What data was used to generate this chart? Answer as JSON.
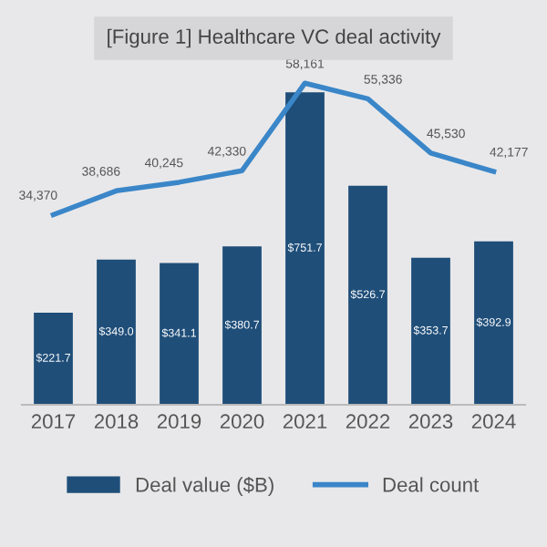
{
  "chart_data": {
    "type": "bar",
    "title": "[Figure 1] Healthcare VC deal activity",
    "categories": [
      "2017",
      "2018",
      "2019",
      "2020",
      "2021",
      "2022",
      "2023",
      "2024"
    ],
    "series": [
      {
        "name": "Deal value ($B)",
        "color": "#1f4e79",
        "values": [
          221.7,
          349.0,
          341.1,
          380.7,
          751.7,
          526.7,
          353.7,
          392.9
        ],
        "value_labels": [
          "$221.7",
          "$349.0",
          "$341.1",
          "$380.7",
          "$751.7",
          "$526.7",
          "$353.7",
          "$392.9"
        ]
      },
      {
        "name": "Deal count",
        "type": "line",
        "axis": "y2",
        "color": "#3a86c8",
        "values": [
          34370,
          38686,
          40245,
          42330,
          58161,
          55336,
          45530,
          42177
        ],
        "value_labels": [
          "34,370",
          "38,686",
          "40,245",
          "42,330",
          "58,161",
          "55,336",
          "45,530",
          "42,177"
        ]
      }
    ],
    "legend": "bottom"
  }
}
